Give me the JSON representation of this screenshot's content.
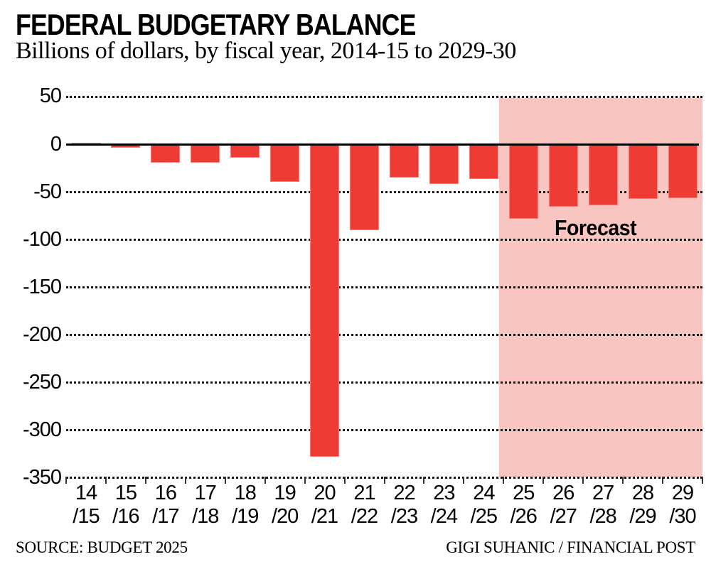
{
  "header": {
    "title": "FEDERAL BUDGETARY BALANCE",
    "subtitle": "Billions of dollars, by fiscal year, 2014-15 to 2029-30"
  },
  "chart_data": {
    "type": "bar",
    "title": "FEDERAL BUDGETARY BALANCE",
    "subtitle": "Billions of dollars, by fiscal year, 2014-15 to 2029-30",
    "unit": "billions of dollars",
    "categories": [
      "14/15",
      "15/16",
      "16/17",
      "17/18",
      "18/19",
      "19/20",
      "20/21",
      "21/22",
      "22/23",
      "23/24",
      "24/25",
      "25/26",
      "26/27",
      "27/28",
      "28/29",
      "29/30"
    ],
    "values": [
      2,
      -3,
      -19,
      -19,
      -14,
      -39,
      -328,
      -90,
      -35,
      -41,
      -36,
      -78,
      -65,
      -64,
      -57,
      -56
    ],
    "yticks": [
      50,
      0,
      -50,
      -100,
      -150,
      -200,
      -250,
      -300,
      -350
    ],
    "ylim": [
      -350,
      50
    ],
    "grid": "dotted horizontal, solid zero baseline",
    "legend": "none",
    "colors": {
      "positive_bar": "#3d86c8",
      "negative_bar": "#ee3b33",
      "forecast_region": "#f9c5c0",
      "gridline": "#151515",
      "zero_line": "#000000"
    },
    "forecast": {
      "label": "Forecast",
      "start_category": "25/26",
      "end_category": "29/30"
    }
  },
  "footer": {
    "source": "SOURCE: BUDGET 2025",
    "credit": "GIGI SUHANIC / FINANCIAL POST"
  }
}
